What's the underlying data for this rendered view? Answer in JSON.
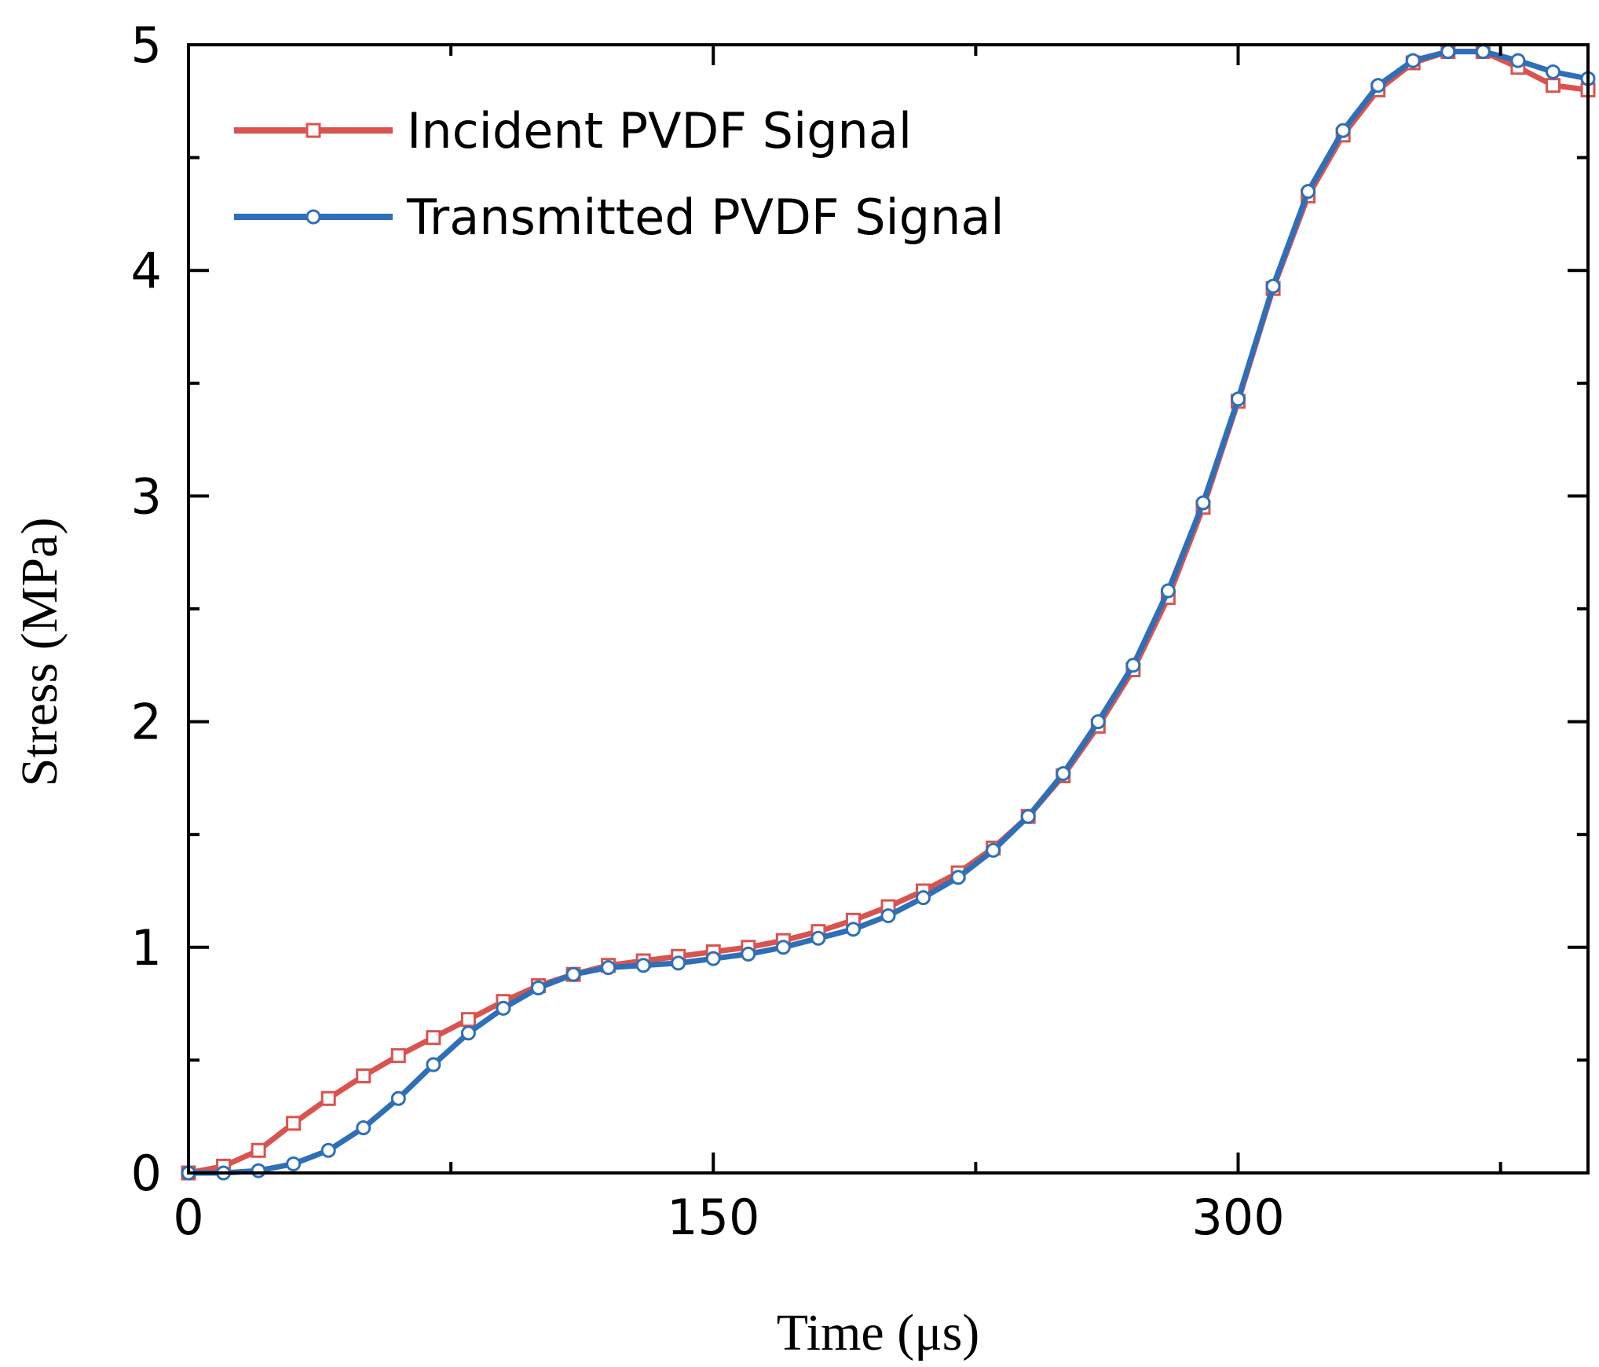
{
  "chart_data": {
    "type": "line",
    "xlabel": "Time (μs)",
    "ylabel": "Stress (MPa)",
    "xlim": [
      0,
      400
    ],
    "ylim": [
      0,
      5
    ],
    "x_ticks": [
      0,
      150,
      300
    ],
    "x_tick_labels": [
      "0",
      "150",
      "300"
    ],
    "y_ticks": [
      0,
      1,
      2,
      3,
      4,
      5
    ],
    "y_tick_labels": [
      "0",
      "1",
      "2",
      "3",
      "4",
      "5"
    ],
    "legend_position": "top-left",
    "series": [
      {
        "name": "Incident PVDF Signal",
        "color": "#d9534f",
        "marker": "square",
        "x": [
          0,
          10,
          20,
          30,
          40,
          50,
          60,
          70,
          80,
          90,
          100,
          110,
          120,
          130,
          140,
          150,
          160,
          170,
          180,
          190,
          200,
          210,
          220,
          230,
          240,
          250,
          260,
          270,
          280,
          290,
          300,
          310,
          320,
          330,
          340,
          350,
          360,
          370,
          380,
          390,
          400
        ],
        "values": [
          0,
          0.03,
          0.1,
          0.22,
          0.33,
          0.43,
          0.52,
          0.6,
          0.68,
          0.76,
          0.83,
          0.88,
          0.92,
          0.94,
          0.96,
          0.98,
          1.0,
          1.03,
          1.07,
          1.12,
          1.18,
          1.25,
          1.33,
          1.44,
          1.58,
          1.76,
          1.98,
          2.23,
          2.55,
          2.95,
          3.42,
          3.92,
          4.33,
          4.6,
          4.8,
          4.92,
          4.97,
          4.97,
          4.9,
          4.82,
          4.8
        ]
      },
      {
        "name": "Transmitted PVDF Signal",
        "color": "#2e6fb8",
        "marker": "circle",
        "x": [
          0,
          10,
          20,
          30,
          40,
          50,
          60,
          70,
          80,
          90,
          100,
          110,
          120,
          130,
          140,
          150,
          160,
          170,
          180,
          190,
          200,
          210,
          220,
          230,
          240,
          250,
          260,
          270,
          280,
          290,
          300,
          310,
          320,
          330,
          340,
          350,
          360,
          370,
          380,
          390,
          400
        ],
        "values": [
          0,
          0.0,
          0.01,
          0.04,
          0.1,
          0.2,
          0.33,
          0.48,
          0.62,
          0.73,
          0.82,
          0.88,
          0.91,
          0.92,
          0.93,
          0.95,
          0.97,
          1.0,
          1.04,
          1.08,
          1.14,
          1.22,
          1.31,
          1.43,
          1.58,
          1.77,
          2.0,
          2.25,
          2.58,
          2.97,
          3.43,
          3.93,
          4.35,
          4.62,
          4.82,
          4.93,
          4.97,
          4.97,
          4.93,
          4.88,
          4.85
        ]
      }
    ]
  }
}
